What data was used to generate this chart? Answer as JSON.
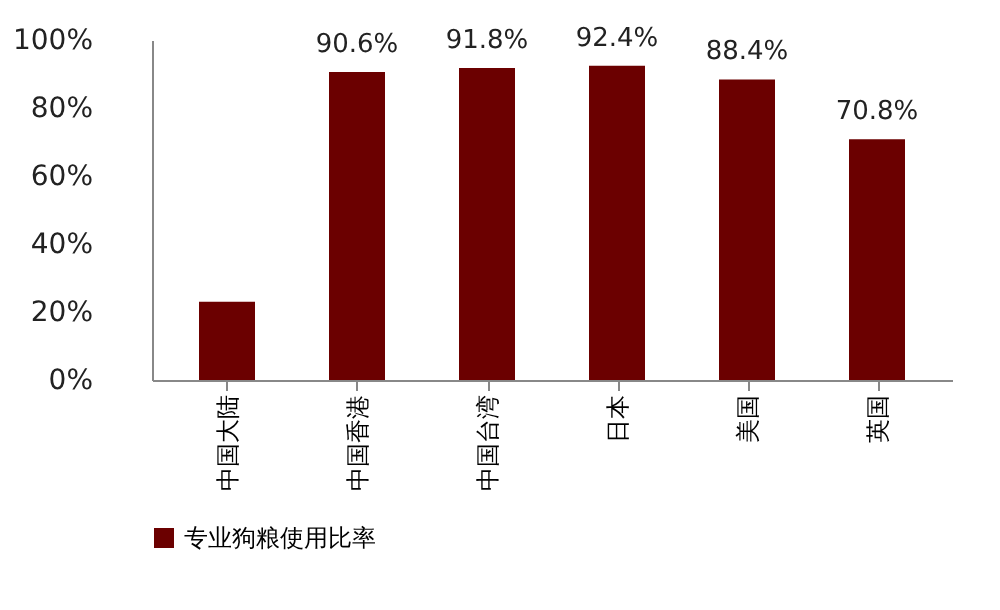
{
  "chart_data": {
    "type": "bar",
    "categories": [
      "中国大陆",
      "中国香港",
      "中国台湾",
      "日本",
      "美国",
      "英国"
    ],
    "series": [
      {
        "name": "专业狗粮使用比率",
        "color": "#6b0000",
        "values": [
          23,
          90.6,
          91.8,
          92.4,
          88.4,
          70.8
        ],
        "value_labels": [
          null,
          "90.6%",
          "91.8%",
          "92.4%",
          "88.4%",
          "70.8%"
        ]
      }
    ],
    "ylim": [
      0,
      100
    ],
    "yticks": [
      {
        "value": 0,
        "label": "0%"
      },
      {
        "value": 20,
        "label": "20%"
      },
      {
        "value": 40,
        "label": "40%"
      },
      {
        "value": 60,
        "label": "60%"
      },
      {
        "value": 80,
        "label": "80%"
      },
      {
        "value": 100,
        "label": "100%"
      }
    ],
    "grid": false,
    "legend": "bottom"
  }
}
